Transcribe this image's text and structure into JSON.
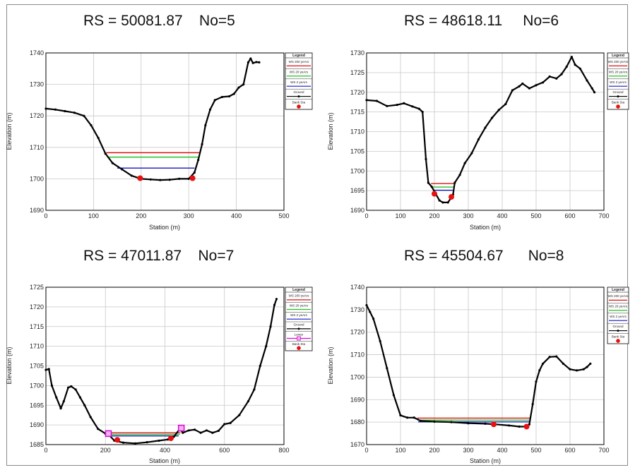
{
  "colors": {
    "grid": "#c8c8c8",
    "ground": "#000000",
    "ws200": "#e01010",
    "ws20": "#22c022",
    "ws2": "#1414c8",
    "bank": "#e81010",
    "levee": "#d010d0"
  },
  "chart_data": [
    {
      "type": "line",
      "title": "RS = 50081.87    No=5",
      "xlabel": "Station (m)",
      "ylabel": "Elevation (m)",
      "xlim": [
        0,
        500
      ],
      "ylim": [
        1690,
        1740
      ],
      "xticks": [
        0,
        100,
        200,
        300,
        400,
        500
      ],
      "yticks": [
        1690,
        1700,
        1710,
        1720,
        1730,
        1740
      ],
      "grid": true,
      "legend_position": "right",
      "legend": {
        "title": "Legend",
        "entries": [
          "WS 200 yeArs",
          "WS 20 yeArs",
          "WS 2 yeArs",
          "Ground",
          "Bank Sta"
        ]
      },
      "ground": [
        [
          0,
          1722.3
        ],
        [
          20,
          1722
        ],
        [
          40,
          1721.5
        ],
        [
          60,
          1721
        ],
        [
          80,
          1720
        ],
        [
          95,
          1717
        ],
        [
          110,
          1713
        ],
        [
          125,
          1708
        ],
        [
          140,
          1705
        ],
        [
          160,
          1703
        ],
        [
          180,
          1701
        ],
        [
          200,
          1700
        ],
        [
          220,
          1699.8
        ],
        [
          240,
          1699.6
        ],
        [
          260,
          1699.7
        ],
        [
          280,
          1700
        ],
        [
          300,
          1700
        ],
        [
          312,
          1702
        ],
        [
          320,
          1706
        ],
        [
          328,
          1711
        ],
        [
          335,
          1717
        ],
        [
          345,
          1722
        ],
        [
          355,
          1725
        ],
        [
          370,
          1726
        ],
        [
          385,
          1726.2
        ],
        [
          395,
          1727
        ],
        [
          405,
          1729
        ],
        [
          415,
          1730
        ],
        [
          425,
          1737
        ],
        [
          430,
          1738.2
        ],
        [
          435,
          1736.8
        ],
        [
          442,
          1737.1
        ],
        [
          448,
          1737
        ]
      ],
      "water_surfaces": [
        {
          "name": "WS 200 yeArs",
          "elevation": 1708.3,
          "x_range": [
            127,
            322
          ]
        },
        {
          "name": "WS 20 yeArs",
          "elevation": 1706.9,
          "x_range": [
            132,
            320
          ]
        },
        {
          "name": "WS 2 yeArs",
          "elevation": 1703.4,
          "x_range": [
            150,
            312
          ]
        }
      ],
      "bank_stations": [
        [
          198,
          1700.2
        ],
        [
          308,
          1700.2
        ]
      ],
      "levees": []
    },
    {
      "type": "line",
      "title": "RS = 48618.11     No=6",
      "xlabel": "Station (m)",
      "ylabel": "Elevation (m)",
      "xlim": [
        0,
        700
      ],
      "ylim": [
        1690,
        1730
      ],
      "xticks": [
        0,
        100,
        200,
        300,
        400,
        500,
        600,
        700
      ],
      "yticks": [
        1690,
        1695,
        1700,
        1705,
        1710,
        1715,
        1720,
        1725,
        1730
      ],
      "grid": true,
      "legend_position": "right",
      "legend": {
        "title": "Legend",
        "entries": [
          "WS 200 yeArs",
          "WS 20 yeArs",
          "WS 2 yeArs",
          "Ground",
          "Bank Sta"
        ]
      },
      "ground": [
        [
          0,
          1718
        ],
        [
          30,
          1717.8
        ],
        [
          60,
          1716.5
        ],
        [
          90,
          1716.8
        ],
        [
          110,
          1717.2
        ],
        [
          135,
          1716.4
        ],
        [
          155,
          1715.8
        ],
        [
          165,
          1715
        ],
        [
          175,
          1703
        ],
        [
          182,
          1697
        ],
        [
          192,
          1696
        ],
        [
          205,
          1694
        ],
        [
          215,
          1692.5
        ],
        [
          225,
          1692
        ],
        [
          240,
          1692
        ],
        [
          248,
          1693
        ],
        [
          255,
          1694
        ],
        [
          260,
          1697
        ],
        [
          275,
          1699
        ],
        [
          290,
          1702
        ],
        [
          310,
          1704.5
        ],
        [
          330,
          1708
        ],
        [
          350,
          1711
        ],
        [
          370,
          1713.5
        ],
        [
          390,
          1715.5
        ],
        [
          410,
          1717
        ],
        [
          430,
          1720.5
        ],
        [
          450,
          1721.5
        ],
        [
          460,
          1722.2
        ],
        [
          480,
          1721
        ],
        [
          500,
          1721.8
        ],
        [
          520,
          1722.5
        ],
        [
          540,
          1724
        ],
        [
          560,
          1723.5
        ],
        [
          575,
          1724.6
        ],
        [
          590,
          1726.5
        ],
        [
          605,
          1729
        ],
        [
          615,
          1727
        ],
        [
          630,
          1726
        ],
        [
          650,
          1723
        ],
        [
          665,
          1721
        ],
        [
          672,
          1720
        ]
      ],
      "water_surfaces": [
        {
          "name": "WS 200 yeArs",
          "elevation": 1696.8,
          "x_range": [
            190,
            258
          ]
        },
        {
          "name": "WS 20 yeArs",
          "elevation": 1695.9,
          "x_range": [
            195,
            256
          ]
        },
        {
          "name": "WS 2 yeArs",
          "elevation": 1695.1,
          "x_range": [
            200,
            254
          ]
        }
      ],
      "bank_stations": [
        [
          200,
          1694.2
        ],
        [
          250,
          1693.4
        ]
      ],
      "levees": []
    },
    {
      "type": "line",
      "title": "RS = 47011.87    No=7",
      "xlabel": "Station (m)",
      "ylabel": "Elevation (m)",
      "xlim": [
        0,
        800
      ],
      "ylim": [
        1685,
        1725
      ],
      "xticks": [
        0,
        200,
        400,
        600,
        800
      ],
      "yticks": [
        1685,
        1690,
        1695,
        1700,
        1705,
        1710,
        1715,
        1720,
        1725
      ],
      "grid": true,
      "legend_position": "right",
      "legend": {
        "title": "Legend",
        "entries": [
          "WS 200 yeArs",
          "WS 20 yeArs",
          "WS 2 yeArs",
          "Ground",
          "Levee",
          "Bank Sta"
        ]
      },
      "ground": [
        [
          0,
          1704
        ],
        [
          10,
          1704.2
        ],
        [
          20,
          1700
        ],
        [
          35,
          1697
        ],
        [
          50,
          1694.2
        ],
        [
          60,
          1696
        ],
        [
          75,
          1699.5
        ],
        [
          85,
          1699.8
        ],
        [
          100,
          1699
        ],
        [
          115,
          1697
        ],
        [
          130,
          1695
        ],
        [
          150,
          1692
        ],
        [
          175,
          1689
        ],
        [
          200,
          1687.8
        ],
        [
          210,
          1687.6
        ],
        [
          230,
          1686
        ],
        [
          260,
          1685.5
        ],
        [
          300,
          1685.3
        ],
        [
          340,
          1685.6
        ],
        [
          380,
          1686
        ],
        [
          410,
          1686.3
        ],
        [
          430,
          1687
        ],
        [
          450,
          1689
        ],
        [
          460,
          1688
        ],
        [
          480,
          1688.6
        ],
        [
          500,
          1688.8
        ],
        [
          520,
          1688
        ],
        [
          540,
          1688.6
        ],
        [
          560,
          1688
        ],
        [
          580,
          1688.5
        ],
        [
          600,
          1690.2
        ],
        [
          620,
          1690.5
        ],
        [
          650,
          1692.5
        ],
        [
          680,
          1696
        ],
        [
          700,
          1699
        ],
        [
          720,
          1705
        ],
        [
          740,
          1710
        ],
        [
          755,
          1715
        ],
        [
          768,
          1720.5
        ],
        [
          775,
          1722
        ]
      ],
      "water_surfaces": [
        {
          "name": "WS 200 yeArs",
          "elevation": 1688,
          "x_range": [
            212,
            452
          ]
        },
        {
          "name": "WS 20 yeArs",
          "elevation": 1687.6,
          "x_range": [
            214,
            450
          ]
        },
        {
          "name": "WS 2 yeArs",
          "elevation": 1687.2,
          "x_range": [
            218,
            446
          ]
        }
      ],
      "bank_stations": [
        [
          240,
          1686.2
        ],
        [
          420,
          1686.6
        ]
      ],
      "levees": [
        [
          210,
          1687.8
        ],
        [
          455,
          1689.2
        ]
      ]
    },
    {
      "type": "line",
      "title": "RS = 45504.67      No=8",
      "xlabel": "Station (m)",
      "ylabel": "Elevation (m)",
      "xlim": [
        0,
        700
      ],
      "ylim": [
        1670,
        1740
      ],
      "xticks": [
        0,
        100,
        200,
        300,
        400,
        500,
        600,
        700
      ],
      "yticks": [
        1670,
        1680,
        1690,
        1700,
        1710,
        1720,
        1730,
        1740
      ],
      "grid": true,
      "legend_position": "right",
      "legend": {
        "title": "Legend",
        "entries": [
          "WS 200 yeArs",
          "WS 20 yeArs",
          "WS 2 yeArs",
          "Ground",
          "Bank Sta"
        ]
      },
      "ground": [
        [
          0,
          1732
        ],
        [
          10,
          1729
        ],
        [
          20,
          1726
        ],
        [
          40,
          1716
        ],
        [
          60,
          1704
        ],
        [
          80,
          1692
        ],
        [
          100,
          1683
        ],
        [
          120,
          1682
        ],
        [
          140,
          1682
        ],
        [
          160,
          1680.5
        ],
        [
          200,
          1680.2
        ],
        [
          250,
          1680
        ],
        [
          300,
          1679.5
        ],
        [
          350,
          1679.3
        ],
        [
          380,
          1679
        ],
        [
          420,
          1678.5
        ],
        [
          450,
          1678
        ],
        [
          470,
          1678
        ],
        [
          480,
          1679
        ],
        [
          490,
          1688
        ],
        [
          500,
          1698
        ],
        [
          510,
          1703
        ],
        [
          520,
          1706
        ],
        [
          540,
          1709
        ],
        [
          560,
          1709.2
        ],
        [
          580,
          1706
        ],
        [
          600,
          1703.5
        ],
        [
          620,
          1703
        ],
        [
          640,
          1703.5
        ],
        [
          650,
          1704.5
        ],
        [
          660,
          1706
        ]
      ],
      "water_surfaces": [
        {
          "name": "WS 200 yeArs",
          "elevation": 1681.8,
          "x_range": [
            150,
            483
          ]
        },
        {
          "name": "WS 20 yeArs",
          "elevation": 1680.9,
          "x_range": [
            150,
            482
          ]
        },
        {
          "name": "WS 2 yeArs",
          "elevation": 1680.1,
          "x_range": [
            152,
            481
          ]
        }
      ],
      "bank_stations": [
        [
          375,
          1679
        ],
        [
          472,
          1678
        ]
      ],
      "levees": []
    }
  ]
}
